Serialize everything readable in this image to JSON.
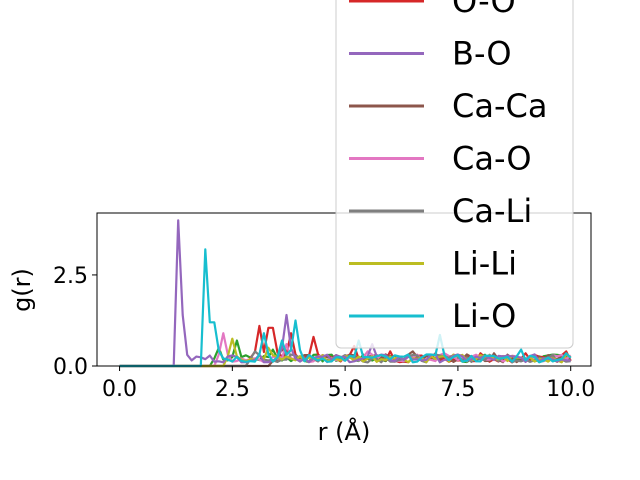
{
  "chart_data": {
    "type": "line",
    "xlabel": "r (Å)",
    "ylabel": "g(r)",
    "xlim": [
      -0.5,
      10.45
    ],
    "ylim": [
      0,
      4.2
    ],
    "x_ticks": [
      0.0,
      2.5,
      5.0,
      7.5,
      10.0
    ],
    "x_tick_labels": [
      "0.0",
      "2.5",
      "5.0",
      "7.5",
      "10.0"
    ],
    "y_ticks": [
      0.0,
      2.5
    ],
    "y_tick_labels": [
      "0.0",
      "2.5"
    ],
    "grid": false,
    "legend_position": "upper-right (overflowing above plot)",
    "series": [
      {
        "name": "O-O",
        "color": "#d62728",
        "peaks": [
          [
            3.1,
            1.1
          ],
          [
            3.35,
            1.05
          ],
          [
            3.8,
            0.9
          ],
          [
            4.3,
            0.8
          ],
          [
            5.2,
            0.55
          ],
          [
            6.0,
            0.4
          ],
          [
            7.0,
            0.35
          ],
          [
            8.0,
            0.35
          ],
          [
            9.0,
            0.35
          ],
          [
            9.9,
            0.4
          ]
        ],
        "onset": 2.9
      },
      {
        "name": "B-O",
        "color": "#9467bd",
        "peaks": [
          [
            1.32,
            4.0
          ],
          [
            3.7,
            1.4
          ],
          [
            5.6,
            0.6
          ]
        ],
        "onset": 1.25
      },
      {
        "name": "Ca-Ca",
        "color": "#8c564b",
        "peaks": [
          [
            3.6,
            0.5
          ],
          [
            4.2,
            0.3
          ],
          [
            6.5,
            0.4
          ],
          [
            8.3,
            0.35
          ]
        ],
        "onset": 3.4
      },
      {
        "name": "Ca-O",
        "color": "#e377c2",
        "peaks": [
          [
            2.3,
            0.9
          ],
          [
            3.7,
            0.6
          ],
          [
            5.5,
            0.4
          ],
          [
            7.2,
            0.35
          ]
        ],
        "onset": 2.2
      },
      {
        "name": "Ca-Li",
        "color": "#7f7f7f",
        "peaks": [
          [
            3.0,
            0.4
          ],
          [
            5.0,
            0.3
          ],
          [
            7.5,
            0.25
          ]
        ],
        "onset": 2.9
      },
      {
        "name": "Li-Li",
        "color": "#bcbd22",
        "peaks": [
          [
            2.5,
            0.75
          ],
          [
            3.3,
            0.5
          ],
          [
            4.5,
            0.3
          ],
          [
            6.0,
            0.25
          ],
          [
            8.5,
            0.2
          ]
        ],
        "onset": 2.4
      },
      {
        "name": "Li-O",
        "color": "#17becf",
        "peaks": [
          [
            1.93,
            3.2
          ],
          [
            2.05,
            1.2
          ],
          [
            3.2,
            0.9
          ],
          [
            3.6,
            0.7
          ],
          [
            3.9,
            1.25
          ],
          [
            5.3,
            0.7
          ],
          [
            7.1,
            0.85
          ],
          [
            8.9,
            0.45
          ],
          [
            9.9,
            0.35
          ]
        ],
        "onset": 1.85
      },
      {
        "name": "",
        "color": "#2ca02c",
        "peaks": [
          [
            2.2,
            0.5
          ],
          [
            2.6,
            0.7
          ],
          [
            3.4,
            0.45
          ],
          [
            4.6,
            0.3
          ],
          [
            6.5,
            0.25
          ]
        ],
        "onset": 2.1
      }
    ],
    "legend_entries": [
      "O-O",
      "B-O",
      "Ca-Ca",
      "Ca-O",
      "Ca-Li",
      "Li-Li",
      "Li-O"
    ]
  }
}
